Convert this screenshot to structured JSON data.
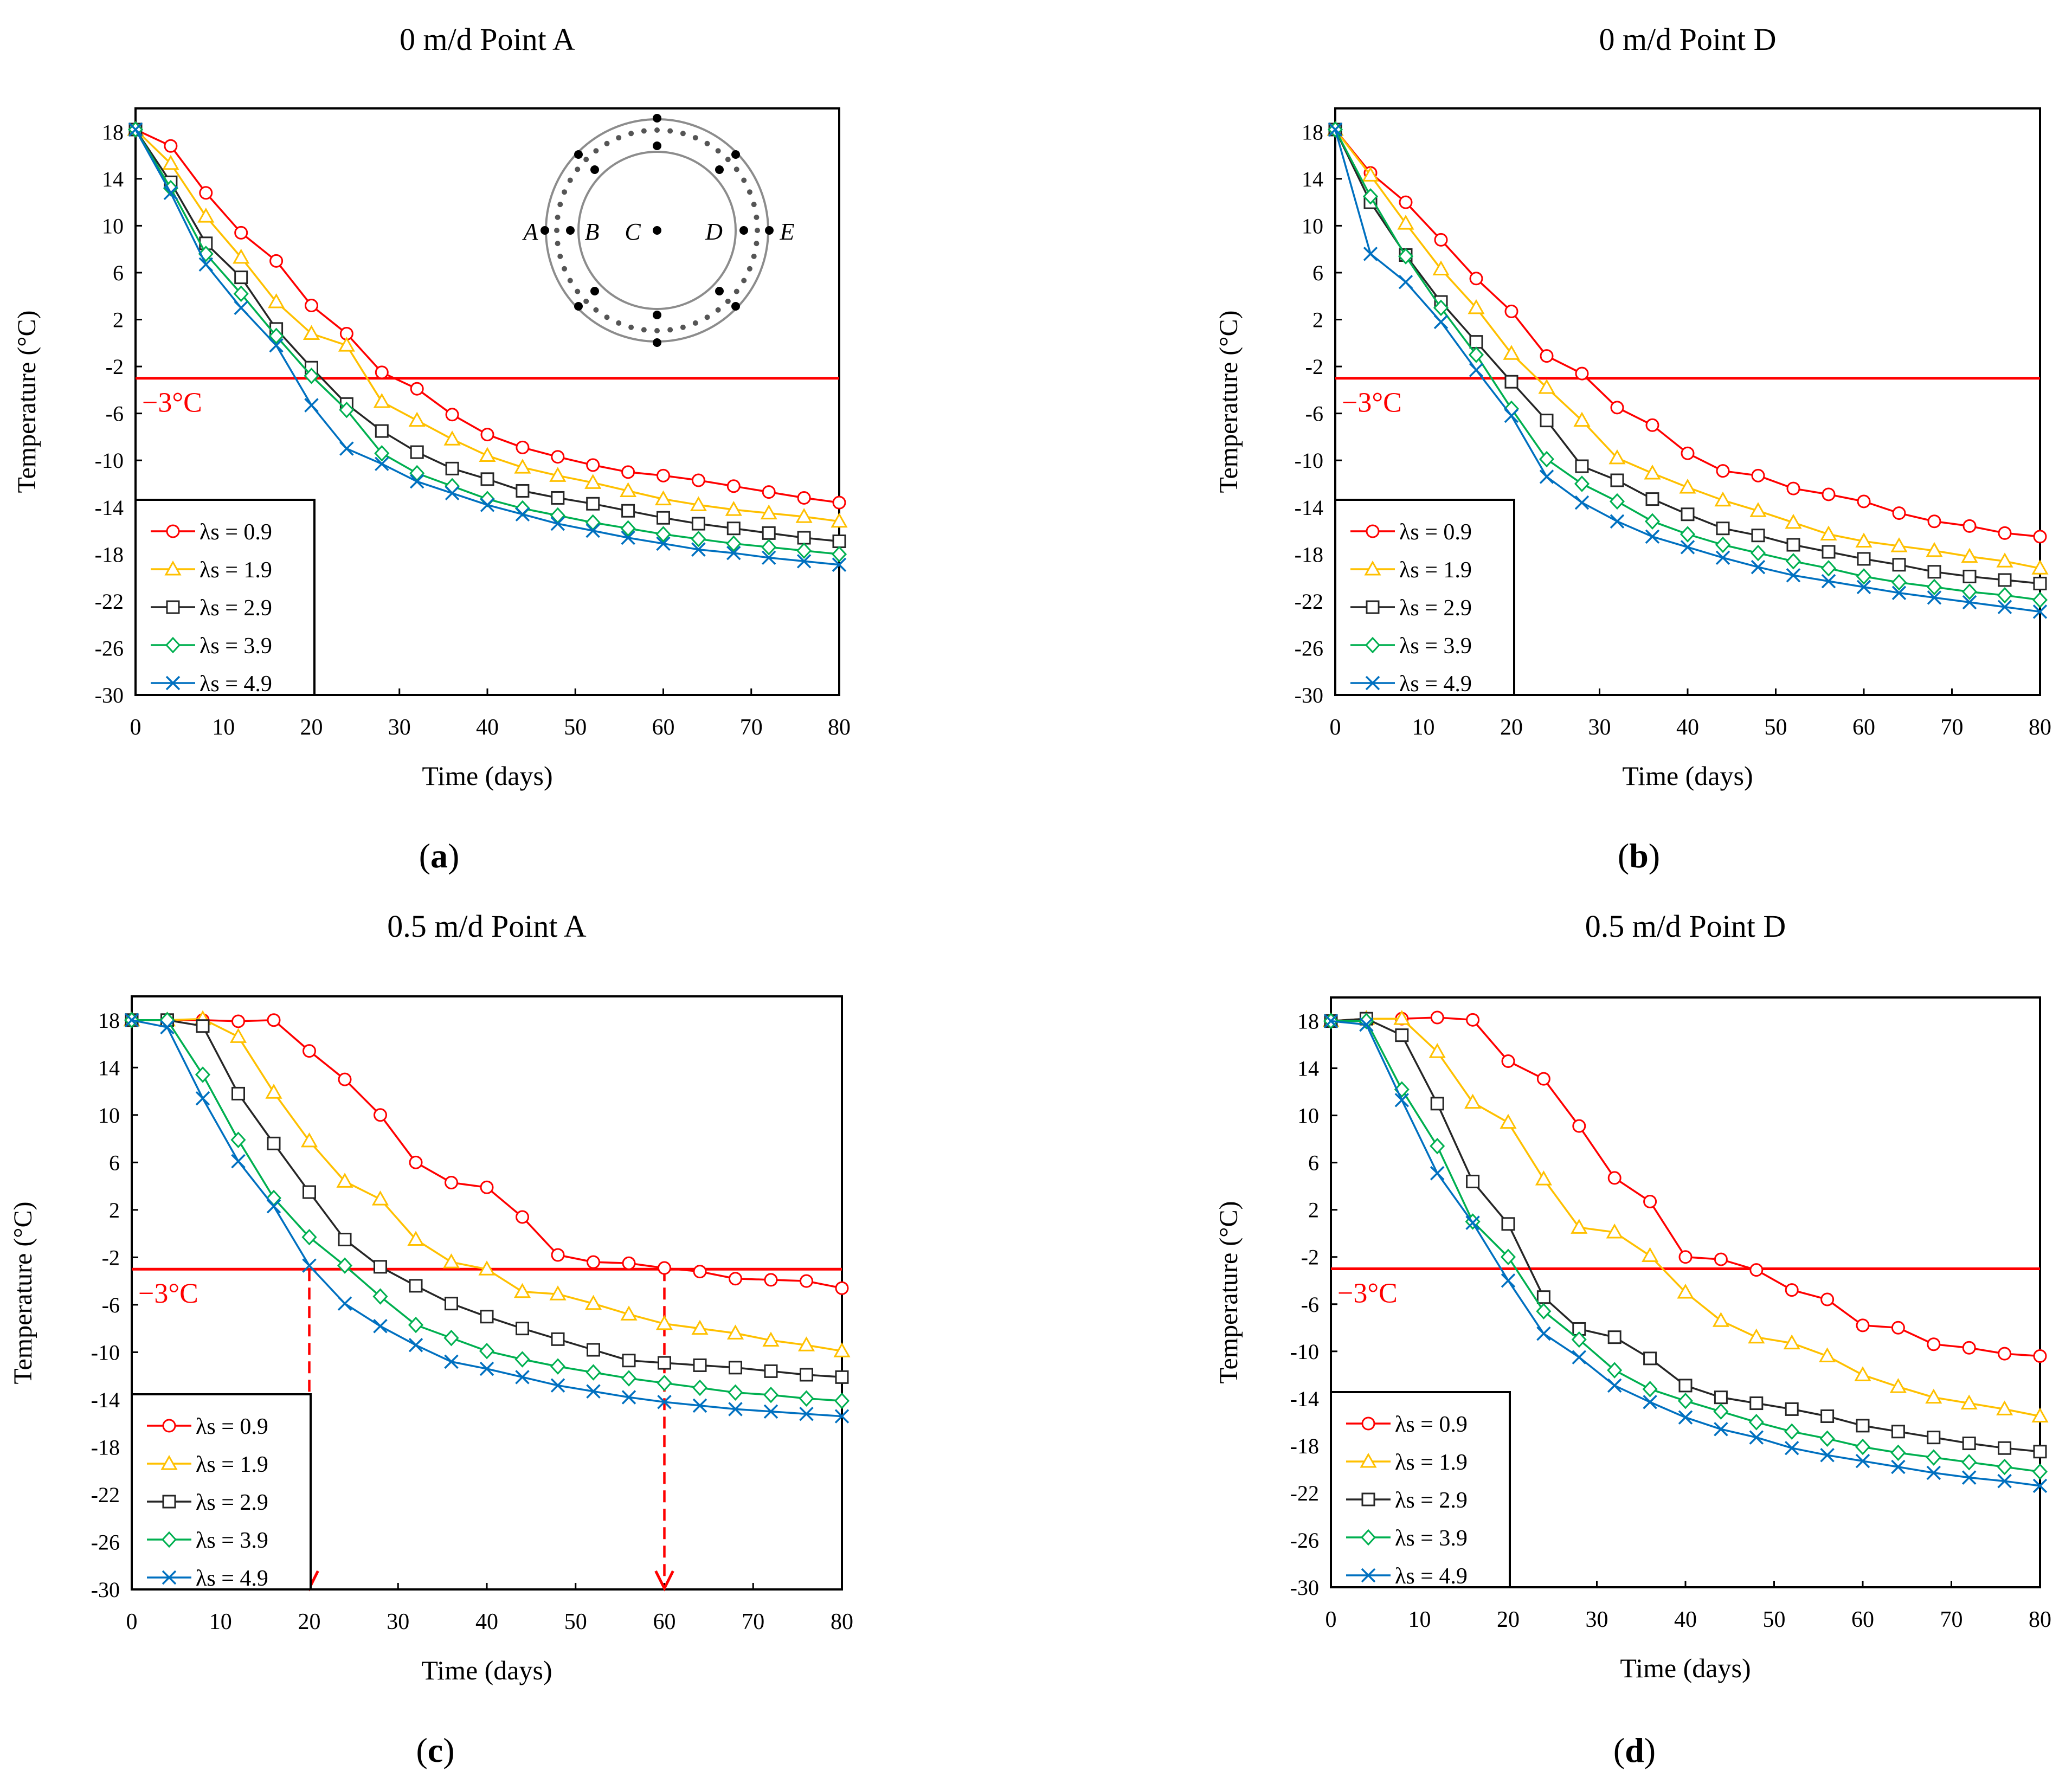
{
  "threshold_label": "−3°C",
  "colors": {
    "threshold": "#ff0000",
    "axis": "#000000",
    "series": [
      "#ff0000",
      "#ffc000",
      "#262626",
      "#00b050",
      "#0070c0"
    ],
    "markers": [
      "circle",
      "triangle",
      "square",
      "diamond",
      "x"
    ]
  },
  "chart_data": [
    {
      "panel": "a",
      "panel_label": "a",
      "type": "line",
      "title": "0 m/d    Point A",
      "xlabel": "Time (days)",
      "ylabel": "Temperature (°C)",
      "xlim": [
        0,
        80
      ],
      "ylim": [
        -30,
        20
      ],
      "xticks": [
        0,
        10,
        20,
        30,
        40,
        50,
        60,
        70,
        80
      ],
      "yticks": [
        18,
        14,
        10,
        6,
        2,
        -2,
        -6,
        -10,
        -14,
        -18,
        -22,
        -26,
        -30
      ],
      "grid": false,
      "legend_position": "bottom-left",
      "threshold": -3,
      "x": [
        0,
        4,
        8,
        12,
        16,
        20,
        24,
        28,
        32,
        36,
        40,
        44,
        48,
        52,
        56,
        60,
        64,
        68,
        72,
        76,
        80
      ],
      "series": [
        {
          "name": "λs = 0.9",
          "values": [
            18.2,
            16.8,
            12.8,
            9.4,
            7.0,
            3.2,
            0.8,
            -2.5,
            -3.9,
            -6.1,
            -7.8,
            -8.9,
            -9.7,
            -10.4,
            -11.0,
            -11.3,
            -11.7,
            -12.2,
            -12.7,
            -13.2,
            -13.6
          ]
        },
        {
          "name": "λs = 1.9",
          "values": [
            18.2,
            15.3,
            10.8,
            7.3,
            3.5,
            0.8,
            -0.2,
            -5.0,
            -6.6,
            -8.2,
            -9.6,
            -10.6,
            -11.3,
            -11.9,
            -12.6,
            -13.3,
            -13.8,
            -14.2,
            -14.5,
            -14.8,
            -15.2
          ]
        },
        {
          "name": "λs = 2.9",
          "values": [
            18.2,
            13.7,
            8.5,
            5.6,
            1.2,
            -2.1,
            -5.2,
            -7.5,
            -9.3,
            -10.7,
            -11.6,
            -12.6,
            -13.2,
            -13.7,
            -14.3,
            -14.9,
            -15.4,
            -15.8,
            -16.2,
            -16.6,
            -16.9
          ]
        },
        {
          "name": "λs = 3.9",
          "values": [
            18.2,
            13.2,
            7.6,
            4.2,
            0.6,
            -2.8,
            -5.7,
            -9.4,
            -11.1,
            -12.2,
            -13.3,
            -14.1,
            -14.7,
            -15.3,
            -15.8,
            -16.3,
            -16.7,
            -17.1,
            -17.4,
            -17.7,
            -18.0
          ]
        },
        {
          "name": "λs = 4.9",
          "values": [
            18.2,
            12.8,
            6.7,
            3.0,
            -0.2,
            -5.3,
            -9.0,
            -10.3,
            -11.8,
            -12.8,
            -13.8,
            -14.6,
            -15.4,
            -16.0,
            -16.6,
            -17.1,
            -17.6,
            -17.9,
            -18.3,
            -18.6,
            -18.9
          ]
        }
      ],
      "inset": {
        "labels": [
          "A",
          "B",
          "C",
          "D",
          "E"
        ]
      }
    },
    {
      "panel": "b",
      "panel_label": "b",
      "type": "line",
      "title": "0 m/d    Point D",
      "xlabel": "Time (days)",
      "ylabel": "Temperature (°C)",
      "xlim": [
        0,
        80
      ],
      "ylim": [
        -30,
        20
      ],
      "xticks": [
        0,
        10,
        20,
        30,
        40,
        50,
        60,
        70,
        80
      ],
      "yticks": [
        18,
        14,
        10,
        6,
        2,
        -2,
        -6,
        -10,
        -14,
        -18,
        -22,
        -26,
        -30
      ],
      "grid": false,
      "legend_position": "bottom-left",
      "threshold": -3,
      "x": [
        0,
        4,
        8,
        12,
        16,
        20,
        24,
        28,
        32,
        36,
        40,
        44,
        48,
        52,
        56,
        60,
        64,
        68,
        72,
        76,
        80
      ],
      "series": [
        {
          "name": "λs = 0.9",
          "values": [
            18.2,
            14.5,
            12.0,
            8.8,
            5.5,
            2.7,
            -1.1,
            -2.6,
            -5.5,
            -7.0,
            -9.4,
            -10.9,
            -11.3,
            -12.4,
            -12.9,
            -13.5,
            -14.5,
            -15.2,
            -15.6,
            -16.2,
            -16.5
          ]
        },
        {
          "name": "λs = 1.9",
          "values": [
            18.2,
            14.3,
            10.2,
            6.3,
            3.0,
            -0.9,
            -3.8,
            -6.6,
            -9.8,
            -11.1,
            -12.3,
            -13.4,
            -14.3,
            -15.3,
            -16.3,
            -16.9,
            -17.3,
            -17.7,
            -18.2,
            -18.6,
            -19.2
          ]
        },
        {
          "name": "λs = 2.9",
          "values": [
            18.2,
            12.0,
            7.5,
            3.5,
            0.1,
            -3.3,
            -6.6,
            -10.5,
            -11.7,
            -13.3,
            -14.6,
            -15.8,
            -16.4,
            -17.2,
            -17.8,
            -18.4,
            -18.9,
            -19.5,
            -19.9,
            -20.2,
            -20.5
          ]
        },
        {
          "name": "λs = 3.9",
          "values": [
            18.2,
            12.5,
            7.4,
            3.0,
            -1.0,
            -5.6,
            -9.9,
            -12.0,
            -13.5,
            -15.2,
            -16.3,
            -17.2,
            -17.9,
            -18.6,
            -19.2,
            -19.9,
            -20.4,
            -20.8,
            -21.2,
            -21.5,
            -21.9
          ]
        },
        {
          "name": "λs = 4.9",
          "values": [
            18.2,
            7.6,
            5.2,
            1.8,
            -2.3,
            -6.2,
            -11.4,
            -13.6,
            -15.2,
            -16.5,
            -17.4,
            -18.3,
            -19.1,
            -19.8,
            -20.3,
            -20.8,
            -21.3,
            -21.7,
            -22.1,
            -22.5,
            -22.9
          ]
        }
      ]
    },
    {
      "panel": "c",
      "panel_label": "c",
      "type": "line",
      "title": "0.5 m/d    Point A",
      "xlabel": "Time (days)",
      "ylabel": "Temperature (°C)",
      "xlim": [
        0,
        80
      ],
      "ylim": [
        -30,
        20
      ],
      "xticks": [
        0,
        10,
        20,
        30,
        40,
        50,
        60,
        70,
        80
      ],
      "yticks": [
        18,
        14,
        10,
        6,
        2,
        -2,
        -6,
        -10,
        -14,
        -18,
        -22,
        -26,
        -30
      ],
      "grid": false,
      "legend_position": "bottom-left",
      "threshold": -3,
      "arrows_at_x": [
        20,
        60
      ],
      "x": [
        0,
        4,
        8,
        12,
        16,
        20,
        24,
        28,
        32,
        36,
        40,
        44,
        48,
        52,
        56,
        60,
        64,
        68,
        72,
        76,
        80
      ],
      "series": [
        {
          "name": "λs = 0.9",
          "values": [
            18.0,
            18.0,
            18.0,
            17.9,
            18.0,
            15.4,
            13.0,
            10.0,
            6.0,
            4.3,
            3.9,
            1.4,
            -1.8,
            -2.4,
            -2.5,
            -2.9,
            -3.2,
            -3.8,
            -3.9,
            -4.0,
            -4.6
          ]
        },
        {
          "name": "λs = 1.9",
          "values": [
            18.0,
            18.0,
            18.1,
            16.6,
            11.9,
            7.8,
            4.4,
            2.9,
            -0.5,
            -2.4,
            -3.0,
            -4.9,
            -5.1,
            -5.9,
            -6.8,
            -7.6,
            -8.0,
            -8.4,
            -9.0,
            -9.4,
            -9.9
          ]
        },
        {
          "name": "λs = 2.9",
          "values": [
            18.0,
            18.0,
            17.5,
            11.8,
            7.6,
            3.5,
            -0.5,
            -2.8,
            -4.4,
            -5.9,
            -7.0,
            -8.0,
            -8.9,
            -9.8,
            -10.7,
            -10.9,
            -11.1,
            -11.3,
            -11.6,
            -11.9,
            -12.1
          ]
        },
        {
          "name": "λs = 3.9",
          "values": [
            18.0,
            18.0,
            13.4,
            7.9,
            3.0,
            -0.3,
            -2.7,
            -5.3,
            -7.7,
            -8.8,
            -9.9,
            -10.6,
            -11.2,
            -11.7,
            -12.2,
            -12.6,
            -13.0,
            -13.4,
            -13.6,
            -13.9,
            -14.1
          ]
        },
        {
          "name": "λs = 4.9",
          "values": [
            18.0,
            17.4,
            11.4,
            6.1,
            2.3,
            -2.7,
            -5.9,
            -7.8,
            -9.4,
            -10.8,
            -11.4,
            -12.1,
            -12.8,
            -13.3,
            -13.8,
            -14.2,
            -14.5,
            -14.8,
            -15.0,
            -15.2,
            -15.4
          ]
        }
      ]
    },
    {
      "panel": "d",
      "panel_label": "d",
      "type": "line",
      "title": "0.5 m/d    Point D",
      "xlabel": "Time (days)",
      "ylabel": "Temperature (°C)",
      "xlim": [
        0,
        80
      ],
      "ylim": [
        -30,
        20
      ],
      "xticks": [
        0,
        10,
        20,
        30,
        40,
        50,
        60,
        70,
        80
      ],
      "yticks": [
        18,
        14,
        10,
        6,
        2,
        -2,
        -6,
        -10,
        -14,
        -18,
        -22,
        -26,
        -30
      ],
      "grid": false,
      "legend_position": "bottom-left",
      "threshold": -3,
      "x": [
        0,
        4,
        8,
        12,
        16,
        20,
        24,
        28,
        32,
        36,
        40,
        44,
        48,
        52,
        56,
        60,
        64,
        68,
        72,
        76,
        80
      ],
      "series": [
        {
          "name": "λs = 0.9",
          "values": [
            18.0,
            18.2,
            18.2,
            18.3,
            18.1,
            14.6,
            13.1,
            9.1,
            4.7,
            2.7,
            -2.0,
            -2.2,
            -3.1,
            -4.8,
            -5.6,
            -7.8,
            -8.0,
            -9.4,
            -9.7,
            -10.2,
            -10.4
          ]
        },
        {
          "name": "λs = 1.9",
          "values": [
            18.0,
            18.2,
            18.2,
            15.4,
            11.1,
            9.4,
            4.6,
            0.5,
            0.1,
            -1.9,
            -5.0,
            -7.4,
            -8.8,
            -9.3,
            -10.4,
            -12.0,
            -13.0,
            -13.9,
            -14.4,
            -14.9,
            -15.5
          ]
        },
        {
          "name": "λs = 2.9",
          "values": [
            18.0,
            18.2,
            16.8,
            11.0,
            4.4,
            0.8,
            -5.4,
            -8.1,
            -8.8,
            -10.6,
            -12.9,
            -13.9,
            -14.4,
            -14.9,
            -15.5,
            -16.3,
            -16.8,
            -17.3,
            -17.8,
            -18.2,
            -18.5
          ]
        },
        {
          "name": "λs = 3.9",
          "values": [
            18.0,
            18.0,
            12.2,
            7.4,
            1.0,
            -2.0,
            -6.6,
            -9.0,
            -11.6,
            -13.2,
            -14.2,
            -15.1,
            -16.0,
            -16.8,
            -17.4,
            -18.1,
            -18.6,
            -19.0,
            -19.4,
            -19.8,
            -20.2
          ]
        },
        {
          "name": "λs = 4.9",
          "values": [
            18.0,
            17.7,
            11.3,
            5.1,
            0.9,
            -4.0,
            -8.5,
            -10.5,
            -12.9,
            -14.3,
            -15.6,
            -16.6,
            -17.3,
            -18.2,
            -18.8,
            -19.3,
            -19.8,
            -20.3,
            -20.7,
            -21.0,
            -21.4
          ]
        }
      ]
    }
  ]
}
